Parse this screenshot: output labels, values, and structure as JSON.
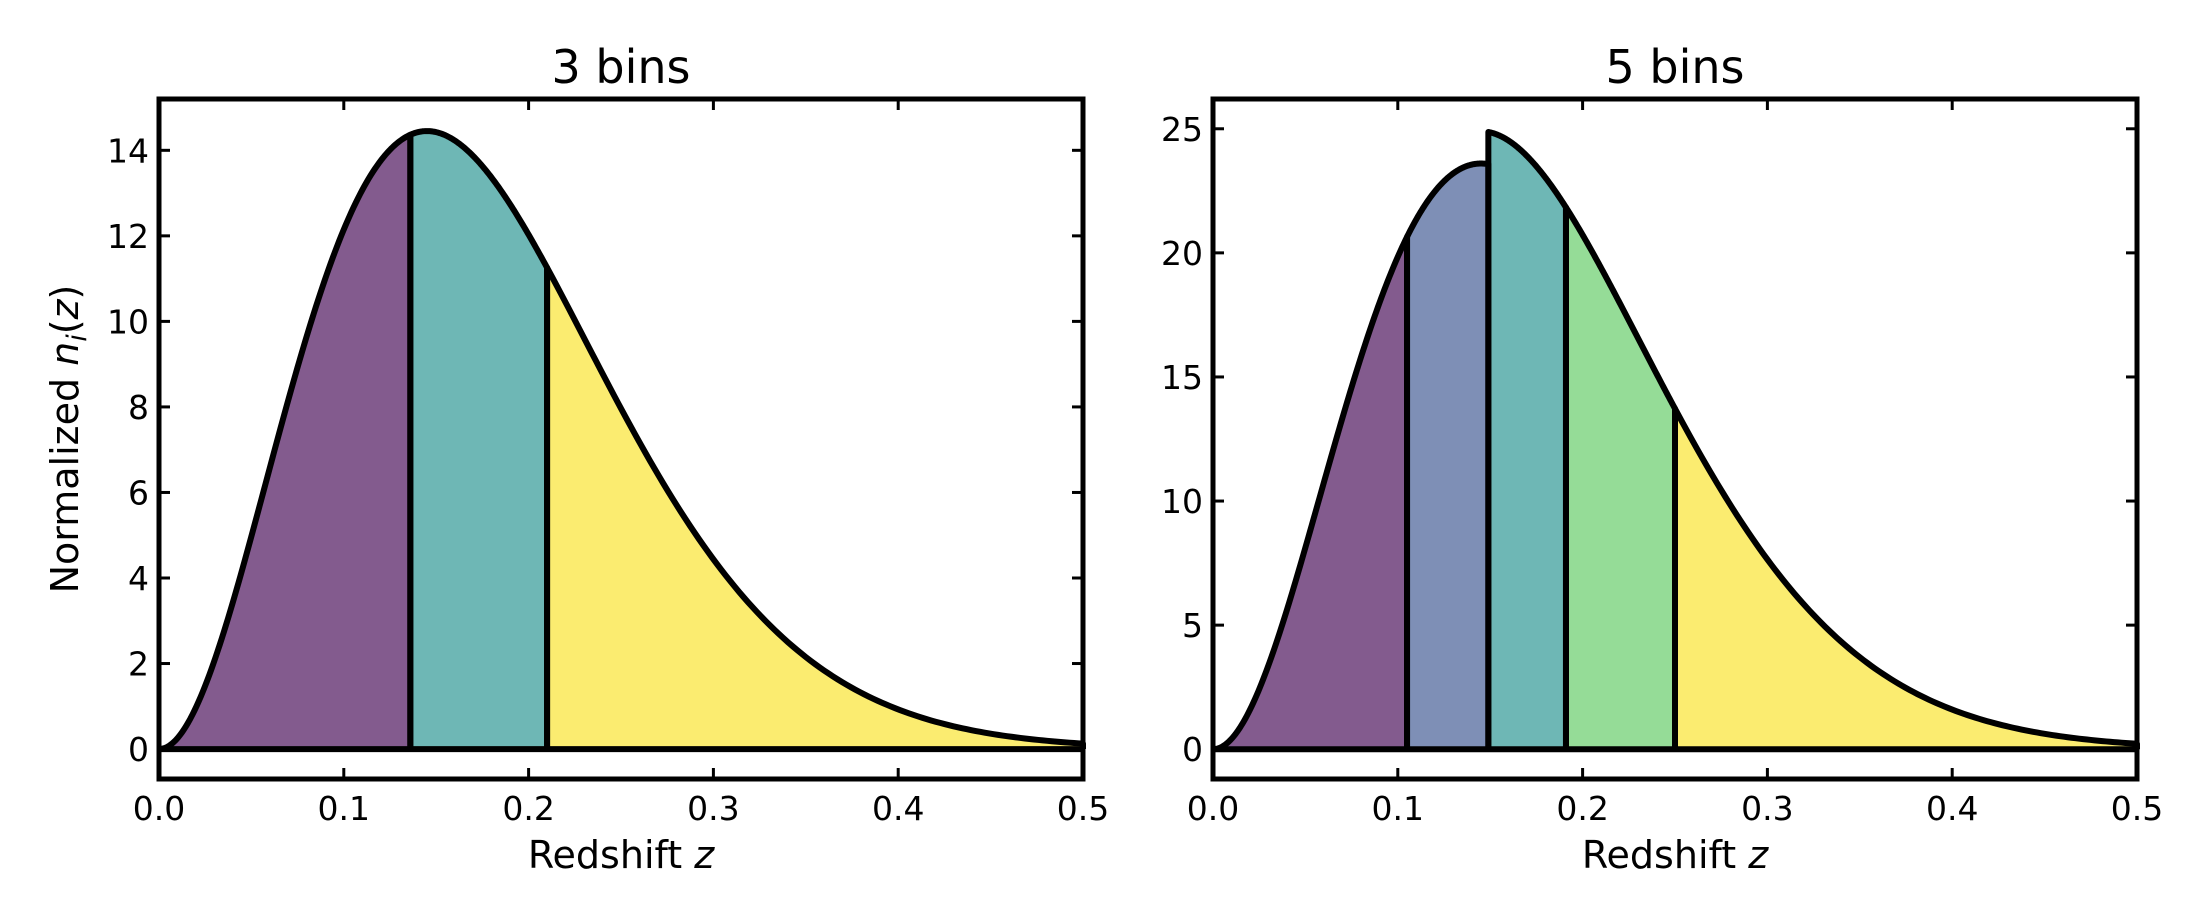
{
  "chart_data": [
    {
      "type": "area",
      "title": "3 bins",
      "xlabel": "Redshift",
      "xlabel_var": "z",
      "ylabel": "Normalized",
      "ylabel_var": "n",
      "ylabel_sub": "i",
      "ylabel_arg": "(z)",
      "xlim": [
        0,
        0.5
      ],
      "ylim": [
        -0.7,
        15.2
      ],
      "xticks": [
        0.0,
        0.1,
        0.2,
        0.3,
        0.4,
        0.5
      ],
      "xtick_labels": [
        "0.0",
        "0.1",
        "0.2",
        "0.3",
        "0.4",
        "0.5"
      ],
      "yticks": [
        0,
        2,
        4,
        6,
        8,
        10,
        12,
        14
      ],
      "ytick_labels": [
        "0",
        "2",
        "4",
        "6",
        "8",
        "10",
        "12",
        "14"
      ],
      "grid": false,
      "curve": {
        "z_peak": 0.145,
        "n_peak": 14.45,
        "alpha": 2,
        "beta": 1.5
      },
      "bins": [
        {
          "zmin": 0.0,
          "zmax": 0.136,
          "color": "#835b8e"
        },
        {
          "zmin": 0.136,
          "zmax": 0.21,
          "color": "#6eb7b5"
        },
        {
          "zmin": 0.21,
          "zmax": 0.5,
          "color": "#fbec70"
        }
      ]
    },
    {
      "type": "area",
      "title": "5 bins",
      "xlabel": "Redshift",
      "xlabel_var": "z",
      "ylabel": "",
      "xlim": [
        0,
        0.5
      ],
      "ylim": [
        -1.2,
        26.2
      ],
      "xticks": [
        0.0,
        0.1,
        0.2,
        0.3,
        0.4,
        0.5
      ],
      "xtick_labels": [
        "0.0",
        "0.1",
        "0.2",
        "0.3",
        "0.4",
        "0.5"
      ],
      "yticks": [
        0,
        5,
        10,
        15,
        20,
        25
      ],
      "ytick_labels": [
        "0",
        "5",
        "10",
        "15",
        "20",
        "25"
      ],
      "grid": false,
      "curve": {
        "z_peak": 0.145,
        "n_peak": 23.6,
        "alpha": 2,
        "beta": 1.5
      },
      "bins": [
        {
          "zmin": 0.0,
          "zmax": 0.105,
          "color": "#835b8e",
          "scale": 1.0
        },
        {
          "zmin": 0.105,
          "zmax": 0.149,
          "color": "#7e8fb6",
          "scale": 1.0
        },
        {
          "zmin": 0.149,
          "zmax": 0.191,
          "color": "#6eb7b5",
          "scale": 1.055
        },
        {
          "zmin": 0.191,
          "zmax": 0.25,
          "color": "#95dc97",
          "scale": 1.055
        },
        {
          "zmin": 0.25,
          "zmax": 0.5,
          "color": "#fbec70",
          "scale": 1.055
        }
      ]
    }
  ]
}
